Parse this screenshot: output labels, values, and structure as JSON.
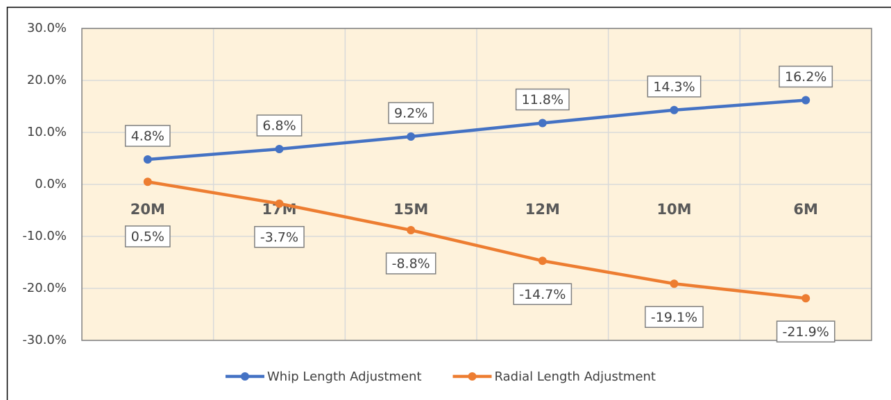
{
  "chart_data": {
    "type": "line",
    "categories": [
      "20M",
      "17M",
      "15M",
      "12M",
      "10M",
      "6M"
    ],
    "series": [
      {
        "name": "Whip Length Adjustment",
        "color": "#4472c4",
        "values": [
          4.8,
          6.8,
          9.2,
          11.8,
          14.3,
          16.2
        ],
        "value_labels": [
          "4.8%",
          "6.8%",
          "9.2%",
          "11.8%",
          "14.3%",
          "16.2%"
        ]
      },
      {
        "name": "Radial Length Adjustment",
        "color": "#ed7d31",
        "values": [
          0.5,
          -3.7,
          -8.8,
          -14.7,
          -19.1,
          -21.9
        ],
        "value_labels": [
          "0.5%",
          "-3.7%",
          "-8.8%",
          "-14.7%",
          "-19.1%",
          "-21.9%"
        ]
      }
    ],
    "ylim": [
      -30,
      30
    ],
    "yticks": [
      {
        "value": -30,
        "label": "-30.0%"
      },
      {
        "value": -20,
        "label": "-20.0%"
      },
      {
        "value": -10,
        "label": "-10.0%"
      },
      {
        "value": 0,
        "label": "0.0%"
      },
      {
        "value": 10,
        "label": "10.0%"
      },
      {
        "value": 20,
        "label": "20.0%"
      },
      {
        "value": 30,
        "label": "30.0%"
      }
    ],
    "grid": true,
    "legend": "bottom"
  }
}
